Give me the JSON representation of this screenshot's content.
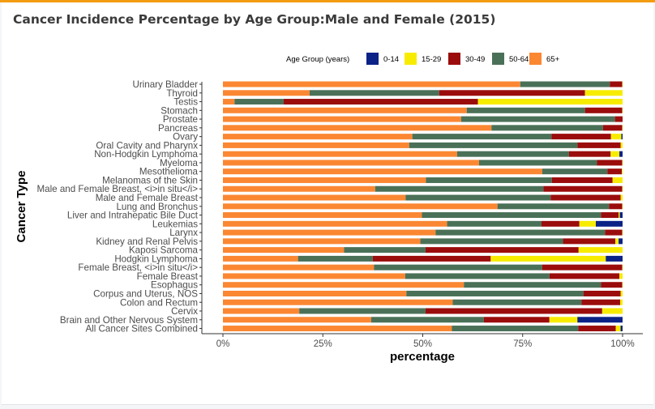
{
  "header": {
    "title": "Cancer Incidence Percentage by Age Group:Male and Female (2015)"
  },
  "chart_data": {
    "type": "bar",
    "orientation": "horizontal",
    "stacking": "percent",
    "title": "Cancer Incidence Percentage by Age Group:Male and Female (2015)",
    "xlabel": "percentage",
    "ylabel": "Cancer Type",
    "xlim": [
      0,
      100
    ],
    "x_ticks": [
      "0%",
      "25%",
      "50%",
      "75%",
      "100%"
    ],
    "grid": false,
    "legend": {
      "title": "Age Group (years)",
      "position": "top"
    },
    "categories": [
      "Urinary Bladder",
      "Thyroid",
      "Testis",
      "Stomach",
      "Prostate",
      "Pancreas",
      "Ovary",
      "Oral Cavity and Pharynx",
      "Non-Hodgkin Lymphoma",
      "Myeloma",
      "Mesothelioma",
      "Melanomas of the Skin",
      "Male and Female Breast, <i>in situ</i>",
      "Male and Female Breast",
      "Lung and Bronchus",
      "Liver and Intrahepatic Bile Duct",
      "Leukemias",
      "Larynx",
      "Kidney and Renal Pelvis",
      "Kaposi Sarcoma",
      "Hodgkin Lymphoma",
      "Female Breast, <i>in situ</i>",
      "Female Breast",
      "Esophagus",
      "Corpus and Uterus, NOS",
      "Colon and Rectum",
      "Cervix",
      "Brain and Other Nervous System",
      "All Cancer Sites Combined"
    ],
    "series": [
      {
        "name": "0-14",
        "color": "#0b2287",
        "values": [
          0,
          0,
          0,
          0,
          0,
          0,
          0.3,
          0,
          0.8,
          0,
          0,
          0,
          0,
          0,
          0,
          0.7,
          6.7,
          0,
          1,
          0,
          4.2,
          0,
          0,
          0,
          0,
          0,
          0,
          11.3,
          0.5
        ]
      },
      {
        "name": "15-29",
        "color": "#f7ec00",
        "values": [
          0.1,
          9.4,
          36.2,
          0.1,
          0,
          0.1,
          2.6,
          0.5,
          2.2,
          0.1,
          0.2,
          2.5,
          0.1,
          0.5,
          0.1,
          0.3,
          4.1,
          0.1,
          0.8,
          11,
          28.8,
          0.1,
          0.8,
          0.1,
          0.5,
          0.6,
          5.1,
          7,
          1.2
        ]
      },
      {
        "name": "30-49",
        "color": "#9b0c0c",
        "values": [
          3.1,
          36.5,
          48.6,
          9.3,
          1.9,
          4.8,
          14.9,
          10.8,
          10.4,
          6.3,
          3.6,
          15.2,
          19.7,
          17.5,
          3.3,
          4.4,
          9.5,
          4.3,
          13.1,
          38.3,
          29.5,
          20,
          17.5,
          5.3,
          9.3,
          9.7,
          44.2,
          16.4,
          9.4
        ]
      },
      {
        "name": "50-64",
        "color": "#4a7158",
        "values": [
          22.4,
          32.4,
          12.3,
          29.6,
          38.5,
          27.9,
          34.8,
          42.1,
          28,
          29.5,
          16.3,
          31.5,
          42.1,
          36.3,
          27.9,
          44.8,
          23.6,
          42.4,
          35.7,
          20.4,
          18.7,
          42.1,
          36.1,
          34.3,
          44.3,
          32.2,
          31.6,
          28.2,
          31.6
        ]
      },
      {
        "name": "65+",
        "color": "#fb8733",
        "values": [
          74.4,
          21.7,
          2.9,
          61,
          59.6,
          67.2,
          47.4,
          46.6,
          58.6,
          64.1,
          79.9,
          50.8,
          38.1,
          45.7,
          68.7,
          49.8,
          56.1,
          53.2,
          49.4,
          30.3,
          18.8,
          37.8,
          45.6,
          60.3,
          45.9,
          57.5,
          19.1,
          37.1,
          57.3
        ]
      }
    ]
  }
}
